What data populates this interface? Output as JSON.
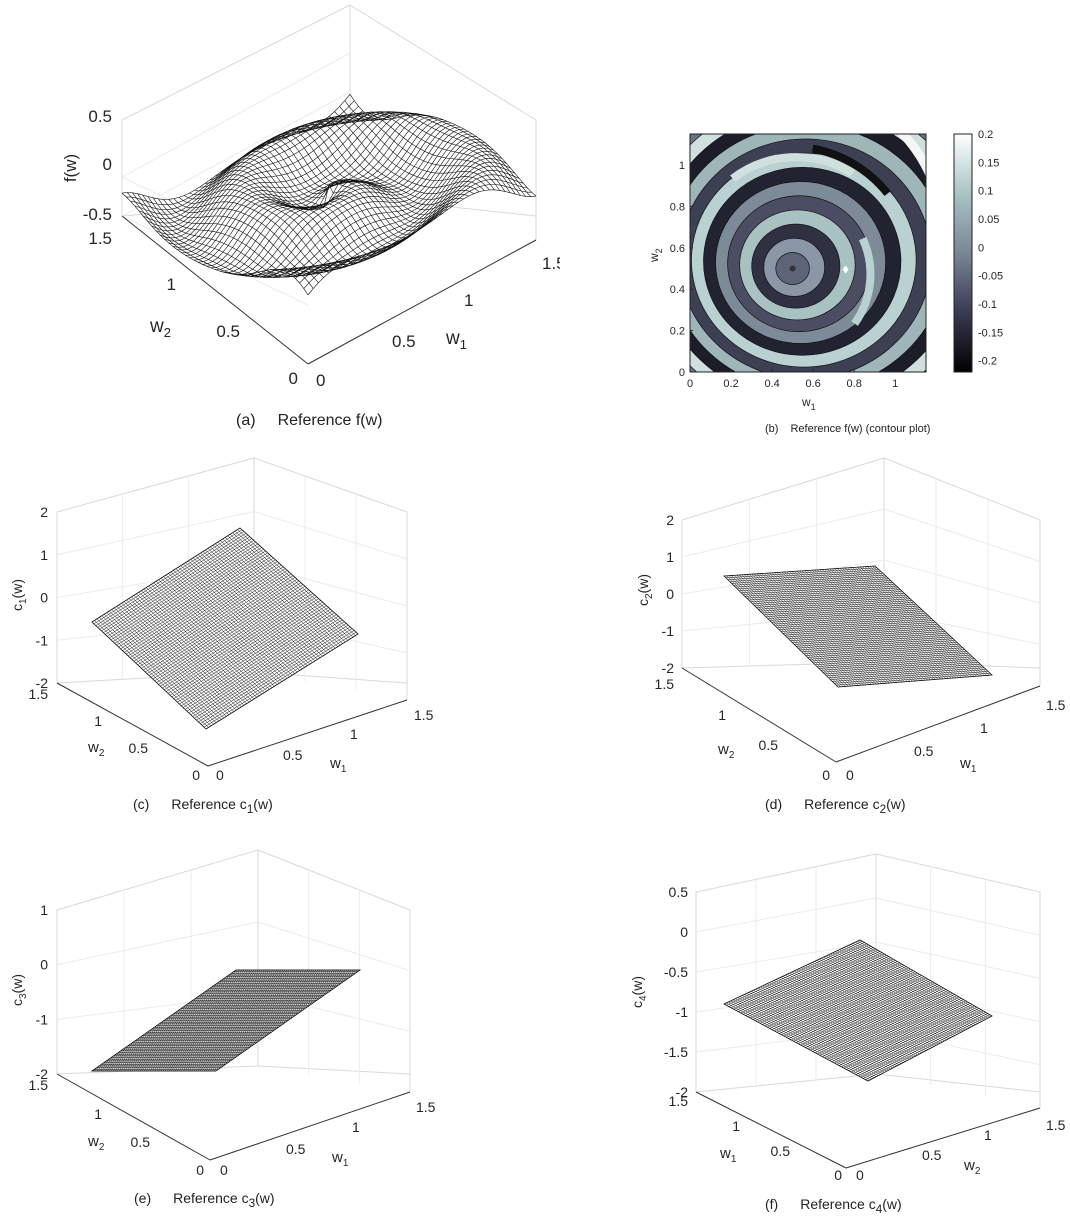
{
  "chart_data": [
    {
      "id": "a",
      "type": "surface",
      "caption_label": "(a)",
      "caption_title": "Reference f(w)",
      "zlabel": "f(w)",
      "xlabel": "w",
      "xlabel_sub": "1",
      "ylabel": "w",
      "ylabel_sub": "2",
      "x_range": [
        0,
        1.5
      ],
      "y_range": [
        0,
        1.5
      ],
      "z_range": [
        -0.5,
        0.5
      ],
      "z_ticks": [
        "0.5",
        "0",
        "-0.5"
      ],
      "w1_ticks": [
        "0",
        "0.5",
        "1",
        "1.5"
      ],
      "w2_ticks": [
        "0",
        "0.5",
        "1",
        "1.5"
      ]
    },
    {
      "id": "b",
      "type": "contour",
      "caption_label": "(b)",
      "caption_title": "Reference f(w) (contour plot)",
      "xlabel": "w",
      "xlabel_sub": "1",
      "ylabel": "w",
      "ylabel_sub": "2",
      "xlim": [
        0,
        1.15
      ],
      "ylim": [
        0,
        1.15
      ],
      "x_ticks": [
        "0",
        "0.2",
        "0.4",
        "0.6",
        "0.8",
        "1"
      ],
      "y_ticks": [
        "0",
        "0.2",
        "0.4",
        "0.6",
        "0.8",
        "1"
      ],
      "center": [
        0.5,
        0.5
      ],
      "colorbar_range": [
        -0.22,
        0.2
      ],
      "colorbar_ticks": [
        "0.2",
        "0.15",
        "0.1",
        "0.05",
        "0",
        "-0.05",
        "-0.1",
        "-0.15",
        "-0.2"
      ]
    },
    {
      "id": "c",
      "type": "surface",
      "caption_label": "(c)",
      "caption_title": "Reference c",
      "caption_sub": "1",
      "caption_tail": "(w)",
      "zlabel": "c",
      "zlabel_sub": "1",
      "zlabel_tail": "(w)",
      "xlabel": "w",
      "xlabel_sub": "1",
      "ylabel": "w",
      "ylabel_sub": "2",
      "x_range": [
        0,
        1.5
      ],
      "y_range": [
        0,
        1.5
      ],
      "z_range": [
        -2,
        2
      ],
      "z_ticks": [
        "2",
        "1",
        "0",
        "-1",
        "-2"
      ],
      "w1_ticks": [
        "0",
        "0.5",
        "1",
        "1.5"
      ],
      "w2_ticks": [
        "0",
        "0.5",
        "1",
        "1.5"
      ]
    },
    {
      "id": "d",
      "type": "surface",
      "caption_label": "(d)",
      "caption_title": "Reference c",
      "caption_sub": "2",
      "caption_tail": "(w)",
      "zlabel": "c",
      "zlabel_sub": "2",
      "zlabel_tail": "(w)",
      "xlabel": "w",
      "xlabel_sub": "1",
      "ylabel": "w",
      "ylabel_sub": "2",
      "x_range": [
        0,
        1.5
      ],
      "y_range": [
        0,
        1.5
      ],
      "z_range": [
        -2,
        2
      ],
      "z_ticks": [
        "2",
        "1",
        "0",
        "-1",
        "-2"
      ],
      "w1_ticks": [
        "0",
        "0.5",
        "1",
        "1.5"
      ],
      "w2_ticks": [
        "0",
        "0.5",
        "1",
        "1.5"
      ]
    },
    {
      "id": "e",
      "type": "surface",
      "caption_label": "(e)",
      "caption_title": "Reference c",
      "caption_sub": "3",
      "caption_tail": "(w)",
      "zlabel": "c",
      "zlabel_sub": "3",
      "zlabel_tail": "(w)",
      "xlabel": "w",
      "xlabel_sub": "1",
      "ylabel": "w",
      "ylabel_sub": "2",
      "x_range": [
        0,
        1.5
      ],
      "y_range": [
        0,
        1.5
      ],
      "z_range": [
        -2,
        1
      ],
      "z_ticks": [
        "1",
        "0",
        "-1",
        "-2"
      ],
      "w1_ticks": [
        "0",
        "0.5",
        "1",
        "1.5"
      ],
      "w2_ticks": [
        "0",
        "0.5",
        "1",
        "1.5"
      ]
    },
    {
      "id": "f",
      "type": "surface",
      "caption_label": "(f)",
      "caption_title": "Reference c",
      "caption_sub": "4",
      "caption_tail": "(w)",
      "zlabel": "c",
      "zlabel_sub": "4",
      "zlabel_tail": "(w)",
      "xlabel": "w",
      "xlabel_sub": "2",
      "ylabel": "w",
      "ylabel_sub": "1",
      "x_range": [
        0,
        1.5
      ],
      "y_range": [
        0,
        1.5
      ],
      "z_range": [
        -2,
        0.5
      ],
      "z_ticks": [
        "0.5",
        "0",
        "-0.5",
        "-1",
        "-1.5",
        "-2"
      ],
      "w1_ticks": [
        "0",
        "0.5",
        "1",
        "1.5"
      ],
      "w2_ticks": [
        "0",
        "0.5",
        "1",
        "1.5"
      ]
    }
  ]
}
